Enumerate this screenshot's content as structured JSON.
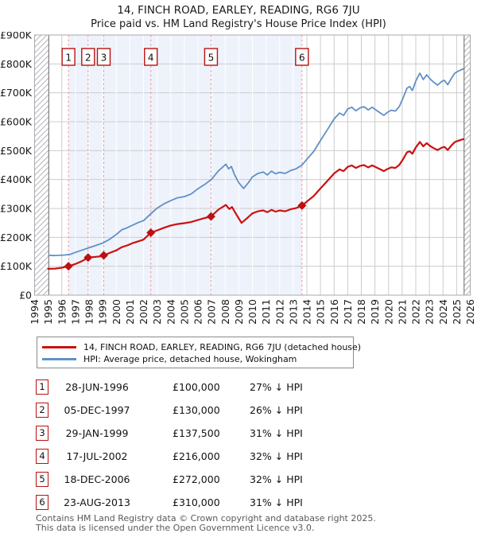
{
  "header": {
    "title": "14, FINCH ROAD, EARLEY, READING, RG6 7JU",
    "subtitle": "Price paid vs. HM Land Registry's House Price Index (HPI)"
  },
  "legend": {
    "items": [
      {
        "label": "14, FINCH ROAD, EARLEY, READING, RG6 7JU (detached house)",
        "color": "#cc1111"
      },
      {
        "label": "HPI: Average price, detached house, Wokingham",
        "color": "#6090c6"
      }
    ]
  },
  "chart_data": {
    "type": "line",
    "title": "14, FINCH ROAD, EARLEY, READING, RG6 7JU",
    "subtitle": "Price paid vs. HM Land Registry's House Price Index (HPI)",
    "xlim": [
      1994,
      2026
    ],
    "ylim": [
      0,
      900000
    ],
    "grid": true,
    "legend_position": "bottom",
    "x_ticks": [
      1994,
      1995,
      1996,
      1997,
      1998,
      1999,
      2000,
      2001,
      2002,
      2003,
      2004,
      2005,
      2006,
      2007,
      2008,
      2009,
      2010,
      2011,
      2012,
      2013,
      2014,
      2015,
      2016,
      2017,
      2018,
      2019,
      2020,
      2021,
      2022,
      2023,
      2024,
      2025,
      2026
    ],
    "y_ticks": [
      {
        "value": 0,
        "label": "£0"
      },
      {
        "value": 100000,
        "label": "£100K"
      },
      {
        "value": 200000,
        "label": "£200K"
      },
      {
        "value": 300000,
        "label": "£300K"
      },
      {
        "value": 400000,
        "label": "£400K"
      },
      {
        "value": 500000,
        "label": "£500K"
      },
      {
        "value": 600000,
        "label": "£600K"
      },
      {
        "value": 700000,
        "label": "£700K"
      },
      {
        "value": 800000,
        "label": "£800K"
      },
      {
        "value": 900000,
        "label": "£900K"
      }
    ],
    "data_span": [
      1995.04,
      2025.55
    ],
    "sale_span": [
      1996.49,
      2013.64
    ],
    "colors": {
      "property_line": "#cc1111",
      "hpi_line": "#6090c6",
      "sale_dashed_line": "#f58f8f",
      "sale_marker": "#bb1111",
      "shaded_span": "#eef2fb",
      "grid": "#cccccc",
      "hatch": "#b4b4bc"
    },
    "series": [
      {
        "name": "14, FINCH ROAD, EARLEY, READING, RG6 7JU (detached house)",
        "color": "#cc1111",
        "width": 2.2,
        "points": [
          [
            1995.0,
            91000
          ],
          [
            1995.5,
            92000
          ],
          [
            1996.0,
            95000
          ],
          [
            1996.49,
            100000
          ],
          [
            1997.0,
            108000
          ],
          [
            1997.5,
            118000
          ],
          [
            1997.93,
            130000
          ],
          [
            1998.4,
            132000
          ],
          [
            1998.8,
            134000
          ],
          [
            1999.08,
            137500
          ],
          [
            1999.5,
            146000
          ],
          [
            2000.0,
            155000
          ],
          [
            2000.4,
            166000
          ],
          [
            2000.8,
            172000
          ],
          [
            2001.2,
            180000
          ],
          [
            2001.6,
            186000
          ],
          [
            2002.0,
            192000
          ],
          [
            2002.54,
            216000
          ],
          [
            2003.0,
            224000
          ],
          [
            2003.5,
            233000
          ],
          [
            2004.0,
            241000
          ],
          [
            2004.5,
            246000
          ],
          [
            2005.0,
            249000
          ],
          [
            2005.5,
            253000
          ],
          [
            2006.0,
            260000
          ],
          [
            2006.5,
            267000
          ],
          [
            2006.96,
            272000
          ],
          [
            2007.5,
            296000
          ],
          [
            2008.05,
            312000
          ],
          [
            2008.3,
            298000
          ],
          [
            2008.5,
            305000
          ],
          [
            2008.8,
            281000
          ],
          [
            2009.2,
            250000
          ],
          [
            2009.6,
            266000
          ],
          [
            2010.0,
            283000
          ],
          [
            2010.4,
            290000
          ],
          [
            2010.8,
            293000
          ],
          [
            2011.1,
            287000
          ],
          [
            2011.4,
            295000
          ],
          [
            2011.7,
            289000
          ],
          [
            2012.0,
            293000
          ],
          [
            2012.4,
            290000
          ],
          [
            2012.8,
            297000
          ],
          [
            2013.2,
            301000
          ],
          [
            2013.64,
            310000
          ],
          [
            2014.0,
            324000
          ],
          [
            2014.5,
            343000
          ],
          [
            2015.0,
            369000
          ],
          [
            2015.5,
            395000
          ],
          [
            2016.0,
            421000
          ],
          [
            2016.4,
            435000
          ],
          [
            2016.7,
            429000
          ],
          [
            2017.0,
            444000
          ],
          [
            2017.3,
            449000
          ],
          [
            2017.6,
            440000
          ],
          [
            2017.9,
            447000
          ],
          [
            2018.2,
            450000
          ],
          [
            2018.5,
            442000
          ],
          [
            2018.8,
            449000
          ],
          [
            2019.1,
            442000
          ],
          [
            2019.4,
            435000
          ],
          [
            2019.65,
            429000
          ],
          [
            2019.9,
            436000
          ],
          [
            2020.2,
            442000
          ],
          [
            2020.5,
            440000
          ],
          [
            2020.8,
            451000
          ],
          [
            2021.1,
            473000
          ],
          [
            2021.35,
            494000
          ],
          [
            2021.55,
            498000
          ],
          [
            2021.75,
            489000
          ],
          [
            2022.0,
            511000
          ],
          [
            2022.3,
            530000
          ],
          [
            2022.55,
            515000
          ],
          [
            2022.8,
            526000
          ],
          [
            2023.05,
            516000
          ],
          [
            2023.3,
            509000
          ],
          [
            2023.6,
            502000
          ],
          [
            2023.9,
            510000
          ],
          [
            2024.1,
            513000
          ],
          [
            2024.35,
            502000
          ],
          [
            2024.6,
            517000
          ],
          [
            2024.85,
            529000
          ],
          [
            2025.05,
            533000
          ],
          [
            2025.3,
            537000
          ],
          [
            2025.5,
            540000
          ]
        ]
      },
      {
        "name": "HPI: Average price, detached house, Wokingham",
        "color": "#6090c6",
        "width": 1.8,
        "points": [
          [
            1995.04,
            138000
          ],
          [
            1995.4,
            137000
          ],
          [
            1995.8,
            137500
          ],
          [
            1996.2,
            139000
          ],
          [
            1996.6,
            141000
          ],
          [
            1997.0,
            148000
          ],
          [
            1997.5,
            156000
          ],
          [
            1998.0,
            164000
          ],
          [
            1998.5,
            172000
          ],
          [
            1999.0,
            180000
          ],
          [
            1999.5,
            193000
          ],
          [
            2000.0,
            210000
          ],
          [
            2000.4,
            226000
          ],
          [
            2000.8,
            233000
          ],
          [
            2001.2,
            242000
          ],
          [
            2001.6,
            251000
          ],
          [
            2002.0,
            258000
          ],
          [
            2002.5,
            280000
          ],
          [
            2003.0,
            301000
          ],
          [
            2003.5,
            316000
          ],
          [
            2004.0,
            327000
          ],
          [
            2004.5,
            337000
          ],
          [
            2005.0,
            341000
          ],
          [
            2005.5,
            350000
          ],
          [
            2006.0,
            368000
          ],
          [
            2006.5,
            383000
          ],
          [
            2007.0,
            401000
          ],
          [
            2007.5,
            430000
          ],
          [
            2008.05,
            453000
          ],
          [
            2008.25,
            437000
          ],
          [
            2008.45,
            445000
          ],
          [
            2008.7,
            416000
          ],
          [
            2009.0,
            389000
          ],
          [
            2009.35,
            369000
          ],
          [
            2009.7,
            389000
          ],
          [
            2010.0,
            409000
          ],
          [
            2010.4,
            421000
          ],
          [
            2010.8,
            426000
          ],
          [
            2011.1,
            416000
          ],
          [
            2011.4,
            429000
          ],
          [
            2011.7,
            420000
          ],
          [
            2012.0,
            425000
          ],
          [
            2012.4,
            421000
          ],
          [
            2012.8,
            431000
          ],
          [
            2013.2,
            437000
          ],
          [
            2013.64,
            450000
          ],
          [
            2014.0,
            470000
          ],
          [
            2014.5,
            497000
          ],
          [
            2015.0,
            535000
          ],
          [
            2015.5,
            572000
          ],
          [
            2016.0,
            610000
          ],
          [
            2016.4,
            630000
          ],
          [
            2016.7,
            622000
          ],
          [
            2017.0,
            644000
          ],
          [
            2017.3,
            650000
          ],
          [
            2017.6,
            638000
          ],
          [
            2017.9,
            648000
          ],
          [
            2018.2,
            652000
          ],
          [
            2018.5,
            641000
          ],
          [
            2018.8,
            650000
          ],
          [
            2019.1,
            640000
          ],
          [
            2019.4,
            630000
          ],
          [
            2019.65,
            622000
          ],
          [
            2019.9,
            632000
          ],
          [
            2020.2,
            640000
          ],
          [
            2020.5,
            637000
          ],
          [
            2020.8,
            653000
          ],
          [
            2021.1,
            686000
          ],
          [
            2021.35,
            716000
          ],
          [
            2021.55,
            722000
          ],
          [
            2021.75,
            708000
          ],
          [
            2022.0,
            741000
          ],
          [
            2022.3,
            768000
          ],
          [
            2022.55,
            746000
          ],
          [
            2022.8,
            762000
          ],
          [
            2023.05,
            748000
          ],
          [
            2023.3,
            737000
          ],
          [
            2023.6,
            727000
          ],
          [
            2023.9,
            739000
          ],
          [
            2024.1,
            743000
          ],
          [
            2024.35,
            728000
          ],
          [
            2024.6,
            749000
          ],
          [
            2024.85,
            767000
          ],
          [
            2025.05,
            773000
          ],
          [
            2025.3,
            779000
          ],
          [
            2025.5,
            783000
          ]
        ]
      }
    ],
    "sales": [
      {
        "n": 1,
        "x": 1996.49,
        "price": 100000
      },
      {
        "n": 2,
        "x": 1997.93,
        "price": 130000
      },
      {
        "n": 3,
        "x": 1999.08,
        "price": 137500
      },
      {
        "n": 4,
        "x": 2002.54,
        "price": 216000
      },
      {
        "n": 5,
        "x": 2006.96,
        "price": 272000
      },
      {
        "n": 6,
        "x": 2013.64,
        "price": 310000
      }
    ]
  },
  "table": {
    "rows": [
      {
        "num": "1",
        "date": "28-JUN-1996",
        "price": "£100,000",
        "hpi": "27% ↓ HPI"
      },
      {
        "num": "2",
        "date": "05-DEC-1997",
        "price": "£130,000",
        "hpi": "26% ↓ HPI"
      },
      {
        "num": "3",
        "date": "29-JAN-1999",
        "price": "£137,500",
        "hpi": "31% ↓ HPI"
      },
      {
        "num": "4",
        "date": "17-JUL-2002",
        "price": "£216,000",
        "hpi": "32% ↓ HPI"
      },
      {
        "num": "5",
        "date": "18-DEC-2006",
        "price": "£272,000",
        "hpi": "32% ↓ HPI"
      },
      {
        "num": "6",
        "date": "23-AUG-2013",
        "price": "£310,000",
        "hpi": "31% ↓ HPI"
      }
    ]
  },
  "footer": {
    "line1": "Contains HM Land Registry data © Crown copyright and database right 2025.",
    "line2": "This data is licensed under the Open Government Licence v3.0."
  }
}
